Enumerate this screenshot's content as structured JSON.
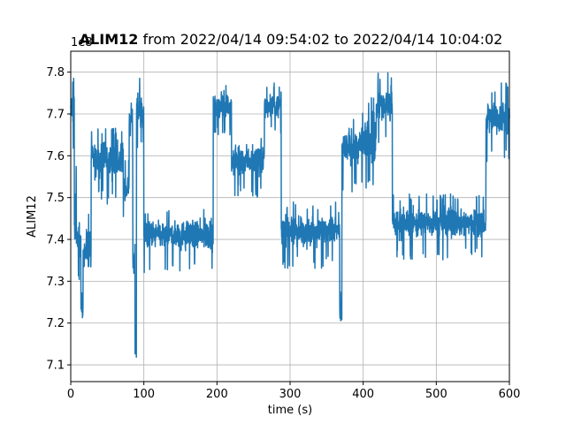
{
  "chart_data": {
    "type": "line",
    "title_bold": "ALIM12",
    "title_rest": " from 2022/04/14 09:54:02 to 2022/04/14 10:04:02",
    "xlabel": "time (s)",
    "ylabel": "ALIM12",
    "offset_label": "1e8",
    "xlim": [
      0,
      600
    ],
    "ylim": [
      7.06,
      7.85
    ],
    "xticks": [
      0,
      100,
      200,
      300,
      400,
      500,
      600
    ],
    "yticks": [
      7.1,
      7.2,
      7.3,
      7.4,
      7.5,
      7.6,
      7.7,
      7.8
    ],
    "grid": true,
    "line_color": "#1f77b4",
    "series": [
      {
        "segments": [
          {
            "x0": 0,
            "x1": 5,
            "center": 7.71,
            "amp": 0.06
          },
          {
            "x0": 5,
            "x1": 8,
            "center": 7.45,
            "amp": 0.1
          },
          {
            "x0": 8,
            "x1": 14,
            "center": 7.4,
            "amp": 0.06
          },
          {
            "x0": 14,
            "x1": 17,
            "center": 7.22,
            "amp": 0.05
          },
          {
            "x0": 17,
            "x1": 28,
            "center": 7.38,
            "amp": 0.07
          },
          {
            "x0": 28,
            "x1": 72,
            "center": 7.59,
            "amp": 0.06
          },
          {
            "x0": 72,
            "x1": 80,
            "center": 7.52,
            "amp": 0.05
          },
          {
            "x0": 80,
            "x1": 85,
            "center": 7.69,
            "amp": 0.06
          },
          {
            "x0": 85,
            "x1": 88,
            "center": 7.35,
            "amp": 0.05
          },
          {
            "x0": 88,
            "x1": 90,
            "center": 7.13,
            "amp": 0.03
          },
          {
            "x0": 90,
            "x1": 100,
            "center": 7.71,
            "amp": 0.06
          },
          {
            "x0": 100,
            "x1": 195,
            "center": 7.41,
            "amp": 0.05
          },
          {
            "x0": 195,
            "x1": 220,
            "center": 7.72,
            "amp": 0.04
          },
          {
            "x0": 220,
            "x1": 265,
            "center": 7.59,
            "amp": 0.05
          },
          {
            "x0": 265,
            "x1": 288,
            "center": 7.72,
            "amp": 0.04
          },
          {
            "x0": 288,
            "x1": 368,
            "center": 7.42,
            "amp": 0.05
          },
          {
            "x0": 368,
            "x1": 371,
            "center": 7.22,
            "amp": 0.04
          },
          {
            "x0": 371,
            "x1": 400,
            "center": 7.62,
            "amp": 0.06
          },
          {
            "x0": 400,
            "x1": 418,
            "center": 7.64,
            "amp": 0.08
          },
          {
            "x0": 418,
            "x1": 440,
            "center": 7.72,
            "amp": 0.06
          },
          {
            "x0": 440,
            "x1": 568,
            "center": 7.44,
            "amp": 0.05
          },
          {
            "x0": 568,
            "x1": 600,
            "center": 7.69,
            "amp": 0.06
          }
        ]
      }
    ]
  }
}
